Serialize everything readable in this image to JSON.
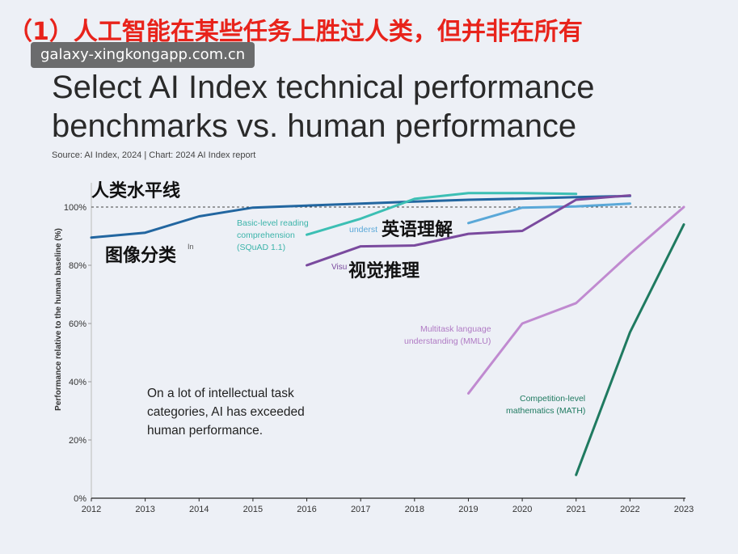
{
  "header": {
    "red_title": "（1）人工智能在某些任务上胜过人类，但并非在所有",
    "watermark": "galaxy-xingkongapp.com.cn",
    "title": "Select AI Index technical performance benchmarks vs. human performance",
    "source": "Source: AI Index, 2024 | Chart: 2024 AI Index report"
  },
  "annotations": {
    "human_baseline_cn": "人类水平线",
    "image_classification_cn": "图像分类",
    "english_understanding_cn": "英语理解",
    "visual_reasoning_cn": "视觉推理",
    "squad_label_line1": "Basic-level reading",
    "squad_label_line2": "comprehension",
    "squad_label_line3": "(SQuAD 1.1)",
    "english_partial": "underst",
    "visual_partial": "Visu",
    "image_partial": "In",
    "mmlu_label_line1": "Multitask language",
    "mmlu_label_line2": "understanding (MMLU)",
    "math_label_line1": "Competition-level",
    "math_label_line2": "mathematics (MATH)",
    "note_line1": "On a lot of intellectual task",
    "note_line2": "categories, AI has exceeded",
    "note_line3": "human performance."
  },
  "chart_data": {
    "type": "line",
    "ylabel": "Performance relative to the human baseline (%)",
    "xlabel": "",
    "xlim": [
      2012,
      2023
    ],
    "ylim": [
      0,
      100
    ],
    "x_ticks": [
      2012,
      2013,
      2014,
      2015,
      2016,
      2017,
      2018,
      2019,
      2020,
      2021,
      2022,
      2023
    ],
    "y_ticks": [
      {
        "value": 0,
        "label": "0%"
      },
      {
        "value": 20,
        "label": "20%"
      },
      {
        "value": 40,
        "label": "40%"
      },
      {
        "value": 60,
        "label": "60%"
      },
      {
        "value": 80,
        "label": "80%"
      },
      {
        "value": 100,
        "label": "100%"
      }
    ],
    "baseline": 100,
    "series": [
      {
        "name": "Image classification",
        "color": "#2266a0",
        "points": [
          [
            2012,
            89.5
          ],
          [
            2013,
            91.2
          ],
          [
            2014,
            96.8
          ],
          [
            2015,
            99.8
          ],
          [
            2016,
            100.5
          ],
          [
            2017,
            101.2
          ],
          [
            2018,
            101.9
          ],
          [
            2019,
            102.5
          ],
          [
            2020,
            102.9
          ],
          [
            2021,
            103.4
          ],
          [
            2022,
            103.8
          ]
        ]
      },
      {
        "name": "Basic-level reading comprehension (SQuAD 1.1)",
        "color": "#3cbfb4",
        "points": [
          [
            2016,
            90.5
          ],
          [
            2017,
            96.0
          ],
          [
            2018,
            102.8
          ],
          [
            2019,
            104.8
          ],
          [
            2020,
            104.8
          ],
          [
            2021,
            104.5
          ]
        ]
      },
      {
        "name": "English language understanding",
        "color": "#5aa8d8",
        "points": [
          [
            2019,
            94.5
          ],
          [
            2020,
            99.8
          ],
          [
            2021,
            100.2
          ],
          [
            2022,
            101.2
          ]
        ]
      },
      {
        "name": "Visual reasoning",
        "color": "#7a4a9e",
        "points": [
          [
            2016,
            80.0
          ],
          [
            2017,
            86.5
          ],
          [
            2018,
            86.8
          ],
          [
            2019,
            90.8
          ],
          [
            2020,
            91.8
          ],
          [
            2021,
            102.5
          ],
          [
            2022,
            104.0
          ]
        ]
      },
      {
        "name": "Multitask language understanding (MMLU)",
        "color": "#c08ad0",
        "points": [
          [
            2019,
            36.0
          ],
          [
            2020,
            60.0
          ],
          [
            2021,
            67.0
          ],
          [
            2022,
            84.0
          ],
          [
            2023,
            100.0
          ]
        ]
      },
      {
        "name": "Competition-level mathematics (MATH)",
        "color": "#1f7a60",
        "points": [
          [
            2021,
            8.0
          ],
          [
            2022,
            57.0
          ],
          [
            2023,
            94.0
          ]
        ]
      }
    ]
  }
}
